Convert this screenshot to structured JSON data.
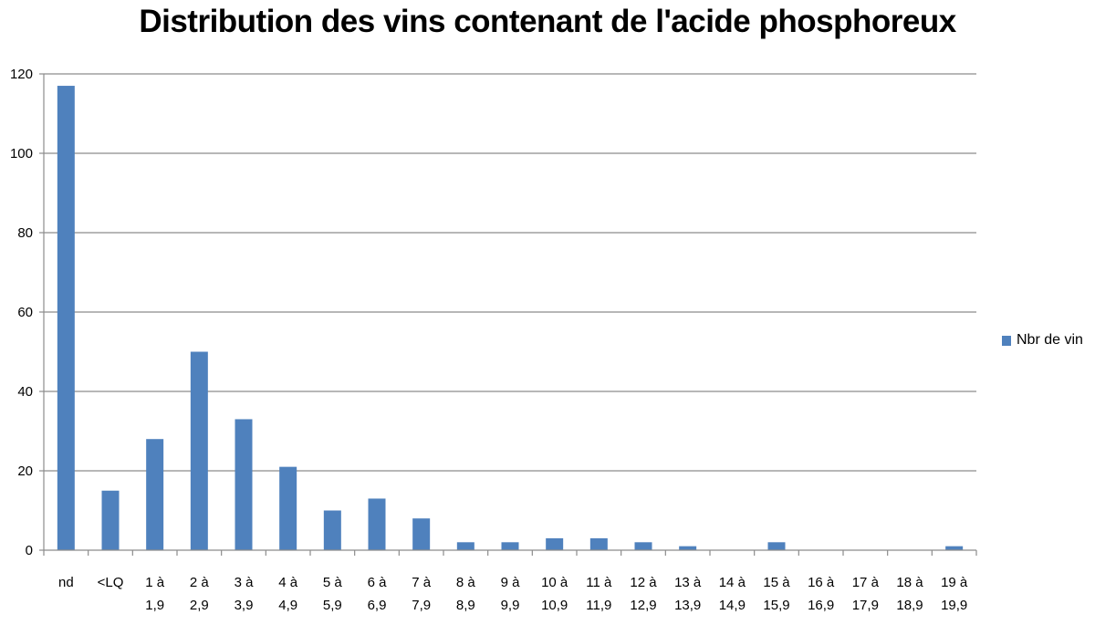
{
  "chart_data": {
    "type": "bar",
    "title": "Distribution des vins contenant de l'acide phosphoreux",
    "categories": [
      [
        "nd"
      ],
      [
        "<LQ"
      ],
      [
        "1 à",
        "1,9"
      ],
      [
        "2 à",
        "2,9"
      ],
      [
        "3 à",
        "3,9"
      ],
      [
        "4 à",
        "4,9"
      ],
      [
        "5 à",
        "5,9"
      ],
      [
        "6 à",
        "6,9"
      ],
      [
        "7 à",
        "7,9"
      ],
      [
        "8 à",
        "8,9"
      ],
      [
        "9 à",
        "9,9"
      ],
      [
        "10 à",
        "10,9"
      ],
      [
        "11 à",
        "11,9"
      ],
      [
        "12 à",
        "12,9"
      ],
      [
        "13 à",
        "13,9"
      ],
      [
        "14 à",
        "14,9"
      ],
      [
        "15 à",
        "15,9"
      ],
      [
        "16 à",
        "16,9"
      ],
      [
        "17 à",
        "17,9"
      ],
      [
        "18 à",
        "18,9"
      ],
      [
        "19 à",
        "19,9"
      ]
    ],
    "series": [
      {
        "name": "Nbr de vin",
        "color": "#4f81bd",
        "values": [
          117,
          15,
          28,
          50,
          33,
          21,
          10,
          13,
          8,
          2,
          2,
          3,
          3,
          2,
          1,
          0,
          2,
          0,
          0,
          0,
          1
        ]
      }
    ],
    "ylim": [
      0,
      120
    ],
    "yticks": [
      "0",
      "20",
      "40",
      "60",
      "80",
      "100",
      "120"
    ],
    "grid": true,
    "legend_position": "right"
  }
}
